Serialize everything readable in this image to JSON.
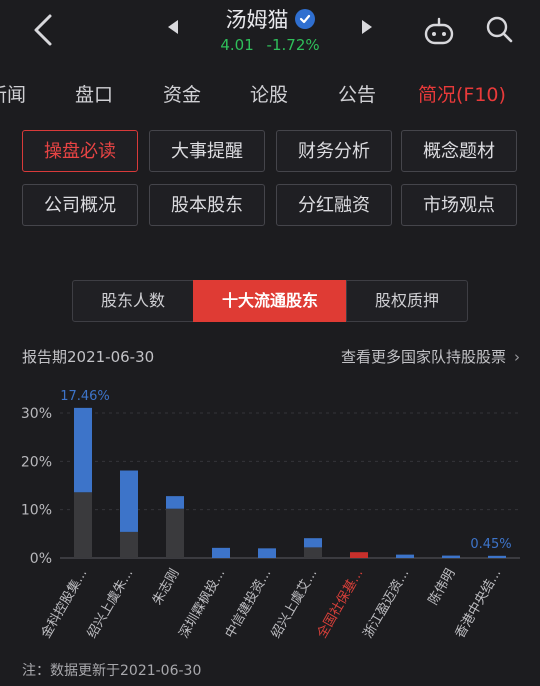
{
  "header": {
    "stock_name": "汤姆猫",
    "price": "4.01",
    "change_pct": "-1.72%"
  },
  "tabs": [
    {
      "label": "新闻",
      "active": false
    },
    {
      "label": "盘口",
      "active": false
    },
    {
      "label": "资金",
      "active": false
    },
    {
      "label": "论股",
      "active": false
    },
    {
      "label": "公告",
      "active": false
    },
    {
      "label": "简况(F10)",
      "active": true
    }
  ],
  "f10_buttons": [
    {
      "label": "操盘必读",
      "active": true
    },
    {
      "label": "大事提醒",
      "active": false
    },
    {
      "label": "财务分析",
      "active": false
    },
    {
      "label": "概念题材",
      "active": false
    },
    {
      "label": "公司概况",
      "active": false
    },
    {
      "label": "股本股东",
      "active": false
    },
    {
      "label": "分红融资",
      "active": false
    },
    {
      "label": "市场观点",
      "active": false
    }
  ],
  "segments": [
    {
      "label": "股东人数",
      "active": false
    },
    {
      "label": "十大流通股东",
      "active": true
    },
    {
      "label": "股权质押",
      "active": false
    }
  ],
  "report_period": "报告期2021-06-30",
  "more_link": "查看更多国家队持股股票",
  "footnote": "注：数据更新于2021-06-30",
  "colors": {
    "accent": "#e83a3a",
    "bar_blue": "#3d74c9",
    "bar_gray": "#3a3a3d",
    "bar_red": "#c8302c",
    "rise_down": "#2fbf5a"
  },
  "chart_data": {
    "type": "bar",
    "stacked": true,
    "categories": [
      "金科控股集...",
      "绍兴上虞朱...",
      "朱志刚",
      "深圳霖枫投...",
      "中信建投资...",
      "绍兴上虞艾...",
      "全国社保基...",
      "浙江盈迈资...",
      "陈伟明",
      "香港中央结..."
    ],
    "highlighted_category": "全国社保基...",
    "series": [
      {
        "values": [
          13.6,
          5.4,
          10.2,
          0,
          0,
          2.2,
          0,
          0,
          0,
          0
        ]
      },
      {
        "values": [
          17.46,
          12.7,
          2.6,
          2.1,
          2.0,
          1.9,
          1.2,
          0.7,
          0.5,
          0.45
        ]
      }
    ],
    "data_labels": {
      "first": "17.46%",
      "last": "0.45%"
    },
    "y_ticks": [
      "30%",
      "20%",
      "10%",
      "0%"
    ],
    "ylim": [
      0,
      30
    ]
  }
}
